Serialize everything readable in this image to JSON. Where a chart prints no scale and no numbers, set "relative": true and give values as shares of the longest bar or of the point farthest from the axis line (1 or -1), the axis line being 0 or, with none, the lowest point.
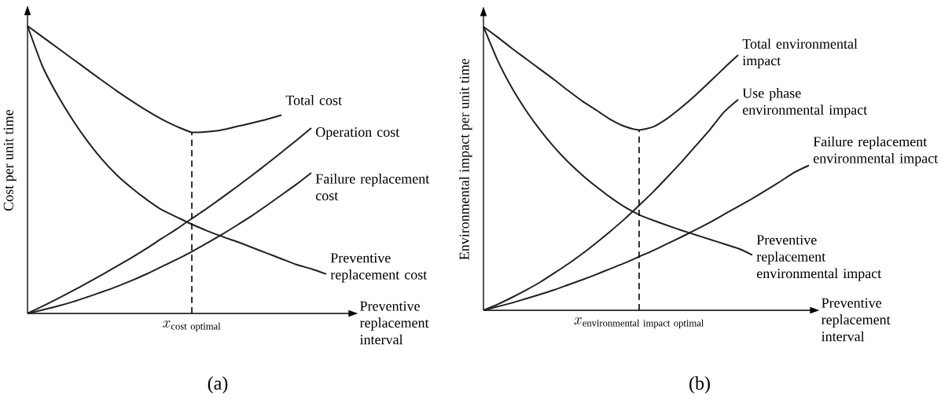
{
  "chart_data": [
    {
      "type": "line",
      "title": "(a)",
      "xlabel": "Preventive replacement interval",
      "ylabel": "Cost per unit time",
      "relative": true,
      "marker": "none",
      "categories": [
        null,
        null,
        null,
        null,
        null,
        null,
        null,
        null,
        null,
        null,
        null,
        null,
        null,
        null,
        null,
        null,
        null,
        null,
        null,
        null,
        null
      ],
      "series": [
        {
          "name": "Total cost",
          "color": "#231f20",
          "values": [
            1.0,
            0.962,
            0.924,
            0.886,
            0.848,
            0.81,
            0.773,
            0.738,
            0.705,
            0.675,
            0.65,
            0.63,
            0.632,
            0.638,
            0.65,
            0.662,
            0.675,
            0.69,
            null,
            null,
            null
          ]
        },
        {
          "name": "Operation cost",
          "color": "#231f20",
          "values": [
            0,
            0.025,
            0.051,
            0.078,
            0.106,
            0.135,
            0.165,
            0.195,
            0.227,
            0.261,
            0.294,
            0.33,
            0.365,
            0.402,
            0.44,
            0.479,
            0.519,
            0.56,
            0.602,
            0.645,
            null
          ]
        },
        {
          "name": "Failure replacement cost",
          "color": "#231f20",
          "values": [
            0,
            0.012,
            0.025,
            0.04,
            0.057,
            0.075,
            0.094,
            0.115,
            0.138,
            0.163,
            0.188,
            0.215,
            0.244,
            0.274,
            0.306,
            0.339,
            0.375,
            0.412,
            0.449,
            0.489,
            null
          ]
        },
        {
          "name": "Preventive replacement cost",
          "color": "#231f20",
          "values": [
            1.0,
            0.86,
            0.76,
            0.675,
            0.6,
            0.535,
            0.48,
            0.435,
            0.395,
            0.36,
            0.335,
            0.31,
            0.288,
            0.268,
            0.25,
            0.23,
            0.21,
            0.19,
            0.17,
            0.155,
            0.137
          ]
        }
      ],
      "annotations": [
        "x_{\\mathrm{cost\\ optimal}}"
      ]
    },
    {
      "type": "line",
      "title": "(b)",
      "xlabel": "Preventive replacement interval",
      "ylabel": "Environmental impact per unit time",
      "relative": true,
      "marker": "none",
      "categories": [
        null,
        null,
        null,
        null,
        null,
        null,
        null,
        null,
        null,
        null,
        null,
        null,
        null,
        null,
        null,
        null,
        null,
        null,
        null,
        null,
        null,
        null,
        null,
        null
      ],
      "series": [
        {
          "name": "Total environmental impact",
          "color": "#231f20",
          "values": [
            1.0,
            0.963,
            0.924,
            0.887,
            0.85,
            0.813,
            0.774,
            0.737,
            0.705,
            0.672,
            0.648,
            0.636,
            0.647,
            0.677,
            0.716,
            0.759,
            0.806,
            0.854,
            0.9,
            null,
            null,
            null,
            null,
            null
          ]
        },
        {
          "name": "Use phase environmental impact",
          "color": "#231f20",
          "values": [
            0,
            0.021,
            0.045,
            0.071,
            0.099,
            0.131,
            0.164,
            0.2,
            0.239,
            0.28,
            0.323,
            0.37,
            0.418,
            0.47,
            0.523,
            0.58,
            0.637,
            0.699,
            0.743,
            null,
            null,
            null,
            null,
            null
          ]
        },
        {
          "name": "Failure replacement environmental impact",
          "color": "#231f20",
          "values": [
            0,
            0.013,
            0.026,
            0.041,
            0.056,
            0.072,
            0.09,
            0.108,
            0.127,
            0.147,
            0.167,
            0.189,
            0.211,
            0.235,
            0.259,
            0.284,
            0.31,
            0.338,
            0.366,
            0.394,
            0.424,
            0.455,
            0.487,
            0.511
          ]
        },
        {
          "name": "Preventive replacement environmental impact",
          "color": "#231f20",
          "values": [
            1.0,
            0.881,
            0.785,
            0.705,
            0.636,
            0.575,
            0.522,
            0.476,
            0.435,
            0.397,
            0.364,
            0.337,
            0.317,
            0.299,
            0.282,
            0.266,
            0.25,
            0.234,
            0.218,
            0.195,
            null,
            null,
            null,
            null
          ]
        }
      ],
      "annotations": [
        "x_{\\mathrm{environmental\\ impact\\ optimal}}"
      ]
    }
  ]
}
